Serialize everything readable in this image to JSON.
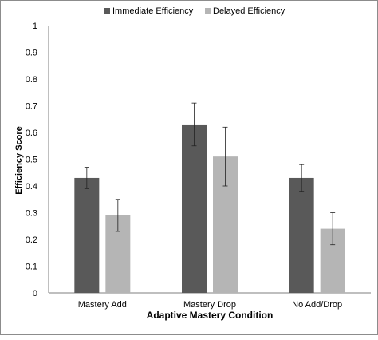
{
  "chart_data": {
    "type": "bar",
    "title": "",
    "xlabel": "Adaptive Mastery Condition",
    "ylabel": "Efficiency Score",
    "ylim": [
      0,
      1
    ],
    "yticks": [
      "0",
      "0.1",
      "0.2",
      "0.3",
      "0.4",
      "0.5",
      "0.6",
      "0.7",
      "0.8",
      "0.9",
      "1"
    ],
    "categories": [
      "Mastery Add",
      "Mastery Drop",
      "No Add/Drop"
    ],
    "series": [
      {
        "name": "Immediate Efficiency",
        "color": "#595959",
        "values": [
          0.43,
          0.63,
          0.43
        ],
        "error": [
          0.04,
          0.08,
          0.05
        ]
      },
      {
        "name": "Delayed Efficiency",
        "color": "#b5b5b5",
        "values": [
          0.29,
          0.51,
          0.24
        ],
        "error": [
          0.06,
          0.11,
          0.06
        ]
      }
    ],
    "grid": false,
    "error_bars": true,
    "legend_position": "top"
  }
}
